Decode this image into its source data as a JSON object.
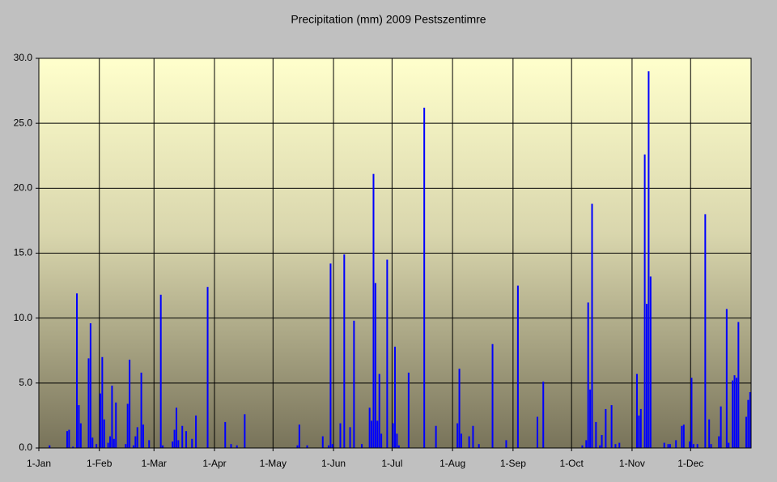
{
  "chart_data": {
    "type": "bar",
    "title": "Precipitation (mm) 2009 Pestszentimre",
    "color": "#0000ff",
    "grid": true,
    "xlim": [
      0,
      365
    ],
    "xticks": [
      {
        "value": 0,
        "label": "1-Jan"
      },
      {
        "value": 31,
        "label": "1-Feb"
      },
      {
        "value": 59,
        "label": "1-Mar"
      },
      {
        "value": 90,
        "label": "1-Apr"
      },
      {
        "value": 120,
        "label": "1-May"
      },
      {
        "value": 151,
        "label": "1-Jun"
      },
      {
        "value": 181,
        "label": "1-Jul"
      },
      {
        "value": 212,
        "label": "1-Aug"
      },
      {
        "value": 243,
        "label": "1-Sep"
      },
      {
        "value": 273,
        "label": "1-Oct"
      },
      {
        "value": 304,
        "label": "1-Nov"
      },
      {
        "value": 334,
        "label": "1-Dec"
      }
    ],
    "ylim": [
      0,
      30
    ],
    "yticks": [
      {
        "value": 0,
        "label": "0.0"
      },
      {
        "value": 5,
        "label": "5.0"
      },
      {
        "value": 10,
        "label": "10.0"
      },
      {
        "value": 15,
        "label": "15.0"
      },
      {
        "value": 20,
        "label": "20.0"
      },
      {
        "value": 25,
        "label": "25.0"
      },
      {
        "value": 30,
        "label": "30.0"
      }
    ],
    "x": [
      5,
      14,
      15,
      17,
      19,
      20,
      21,
      25,
      26,
      27,
      29,
      31,
      32,
      33,
      35,
      36,
      37,
      38,
      39,
      44,
      45,
      46,
      48,
      49,
      50,
      52,
      53,
      56,
      62,
      63,
      68,
      69,
      70,
      71,
      73,
      75,
      78,
      80,
      86,
      95,
      98,
      101,
      105,
      132,
      133,
      137,
      145,
      148,
      149,
      150,
      154,
      156,
      159,
      161,
      165,
      169,
      170,
      171,
      172,
      173,
      174,
      175,
      178,
      181,
      182,
      183,
      184,
      189,
      197,
      203,
      214,
      215,
      216,
      220,
      222,
      225,
      232,
      239,
      245,
      255,
      258,
      278,
      280,
      281,
      282,
      283,
      285,
      287,
      288,
      290,
      293,
      295,
      297,
      306,
      307,
      308,
      310,
      311,
      312,
      313,
      320,
      322,
      323,
      326,
      329,
      330,
      333,
      334,
      335,
      337,
      341,
      343,
      344,
      348,
      349,
      352,
      353,
      355,
      356,
      357,
      358,
      362,
      363,
      364
    ],
    "values": [
      0.2,
      1.3,
      1.4,
      0.1,
      11.9,
      3.3,
      1.9,
      6.9,
      9.6,
      0.8,
      0.3,
      4.2,
      7.0,
      2.2,
      0.4,
      0.9,
      4.8,
      0.7,
      3.5,
      0.3,
      3.4,
      6.8,
      0.2,
      0.9,
      1.6,
      5.8,
      1.8,
      0.6,
      11.8,
      0.2,
      0.5,
      1.4,
      3.1,
      0.6,
      1.7,
      1.3,
      0.7,
      2.5,
      12.4,
      2.0,
      0.3,
      0.2,
      2.6,
      0.2,
      1.8,
      0.2,
      0.9,
      0.2,
      14.2,
      0.3,
      1.9,
      14.9,
      1.6,
      9.8,
      0.3,
      3.1,
      2.1,
      21.1,
      12.7,
      2.1,
      5.7,
      1.1,
      14.5,
      1.9,
      7.8,
      1.1,
      0.2,
      5.8,
      26.2,
      1.7,
      1.9,
      6.1,
      1.1,
      0.9,
      1.7,
      0.3,
      8.0,
      0.6,
      12.5,
      2.4,
      5.1,
      0.2,
      0.6,
      11.2,
      4.5,
      18.8,
      2.0,
      0.2,
      1.0,
      3.0,
      3.3,
      0.3,
      0.4,
      5.7,
      2.5,
      3.0,
      22.6,
      11.1,
      29.0,
      13.2,
      0.4,
      0.3,
      0.3,
      0.6,
      1.7,
      1.8,
      0.5,
      5.4,
      0.3,
      0.3,
      18.0,
      2.2,
      0.3,
      0.9,
      3.2,
      10.7,
      0.4,
      5.2,
      5.6,
      5.4,
      9.7,
      2.4,
      3.7,
      4.3
    ]
  }
}
